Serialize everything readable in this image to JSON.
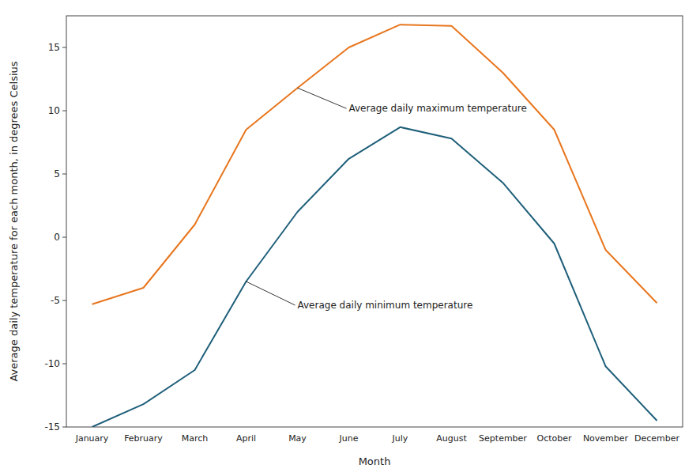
{
  "chart_data": {
    "type": "line",
    "categories": [
      "January",
      "February",
      "March",
      "April",
      "May",
      "June",
      "July",
      "August",
      "September",
      "October",
      "November",
      "December"
    ],
    "series": [
      {
        "color": "#E8761E",
        "values": [
          -5.3,
          -4.0,
          1.0,
          8.5,
          11.8,
          15.0,
          16.8,
          16.7,
          13.0,
          8.5,
          -1.0,
          -5.2
        ]
      },
      {
        "color": "#1F5F7A",
        "values": [
          -15.0,
          -13.2,
          -10.5,
          -3.5,
          2.0,
          6.2,
          8.7,
          7.8,
          4.3,
          -0.5,
          -10.2,
          -14.5
        ]
      }
    ],
    "annotations": [
      "Average daily maximum temperature",
      "Average daily minimum temperature"
    ],
    "x_label": "Month",
    "y_label": "Average daily temperature for each month, in degrees Celsius",
    "ylim": [
      -15,
      17.5
    ],
    "yticks": [
      -15,
      -10,
      -5,
      0,
      5,
      10,
      15
    ],
    "grid": false
  }
}
